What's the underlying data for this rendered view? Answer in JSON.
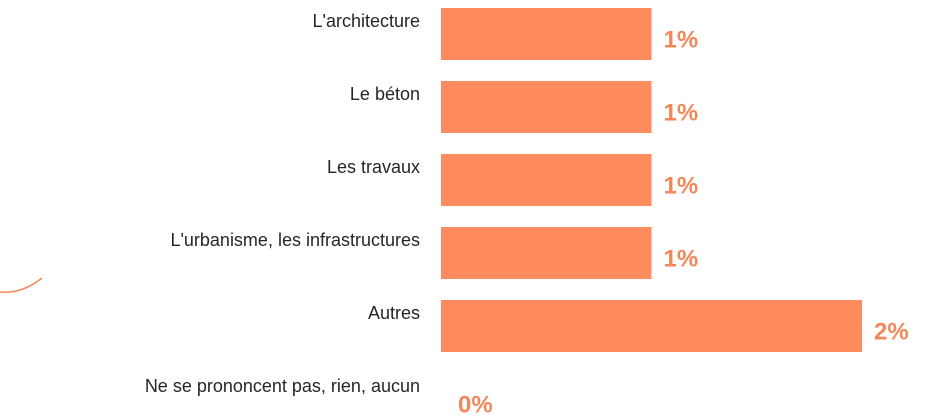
{
  "chart_data": {
    "type": "bar",
    "orientation": "horizontal",
    "categories": [
      "L'architecture",
      "Le béton",
      "Les travaux",
      "L'urbanisme, les infrastructures",
      "Autres",
      "Ne se prononcent pas, rien, aucun"
    ],
    "values": [
      1,
      1,
      1,
      1,
      2,
      0
    ],
    "value_labels": [
      "1%",
      "1%",
      "1%",
      "1%",
      "2%",
      "0%"
    ],
    "color": "#ff8b5e",
    "label_color": "#f4875a"
  }
}
